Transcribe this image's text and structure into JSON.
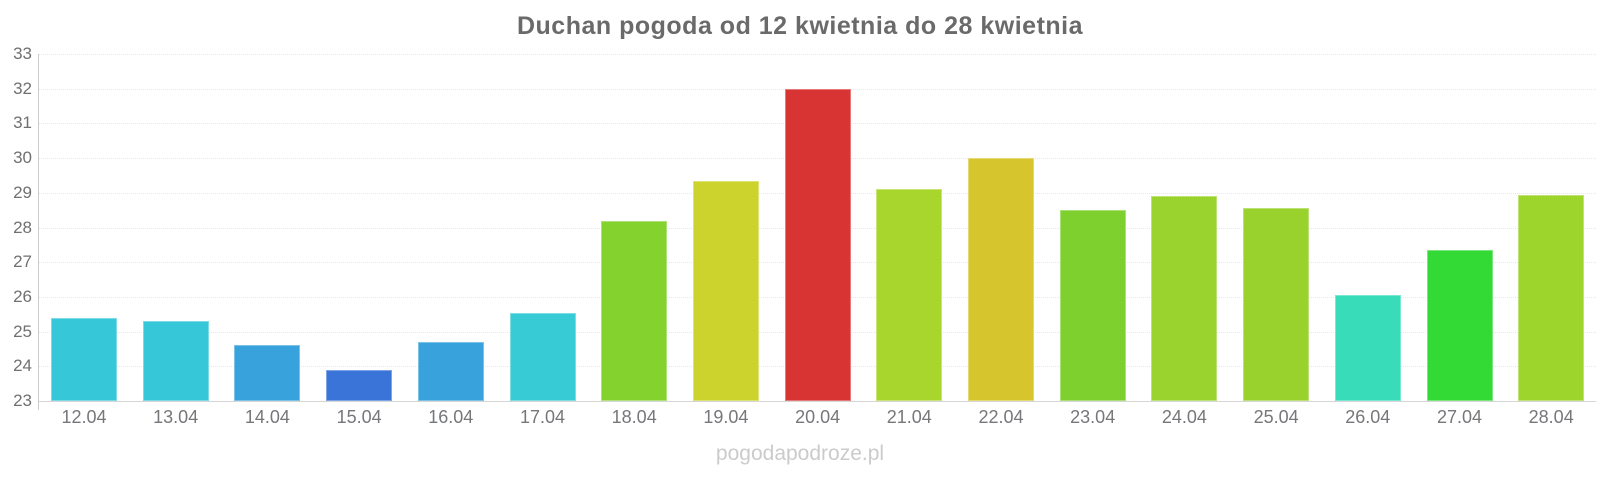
{
  "chart_data": {
    "type": "bar",
    "title": "Duchan pogoda od 12 kwietnia do 28 kwietnia",
    "categories": [
      "12.04",
      "13.04",
      "14.04",
      "15.04",
      "16.04",
      "17.04",
      "18.04",
      "19.04",
      "20.04",
      "21.04",
      "22.04",
      "23.04",
      "24.04",
      "25.04",
      "26.04",
      "27.04",
      "28.04"
    ],
    "values": [
      25.4,
      25.3,
      24.6,
      23.9,
      24.7,
      25.55,
      28.2,
      29.35,
      32.0,
      29.1,
      30.0,
      28.5,
      28.9,
      28.55,
      26.05,
      27.35,
      28.95
    ],
    "bar_colors": [
      "#36C8D8",
      "#36C8D8",
      "#37A2DB",
      "#3A74D8",
      "#37A2DB",
      "#36CBD5",
      "#83D22E",
      "#CBD32C",
      "#D93434",
      "#A9D62C",
      "#D6C52C",
      "#7ED02F",
      "#9AD32D",
      "#99D22D",
      "#38DCB8",
      "#33D935",
      "#9ED52C"
    ],
    "xlabel": "",
    "ylabel": "",
    "ylim": [
      23,
      33
    ],
    "yticks": [
      "23",
      "24",
      "25",
      "26",
      "27",
      "28",
      "29",
      "30",
      "31",
      "32",
      "33"
    ],
    "grid": true,
    "legend": "none",
    "watermark": "pogodapodroze.pl"
  }
}
